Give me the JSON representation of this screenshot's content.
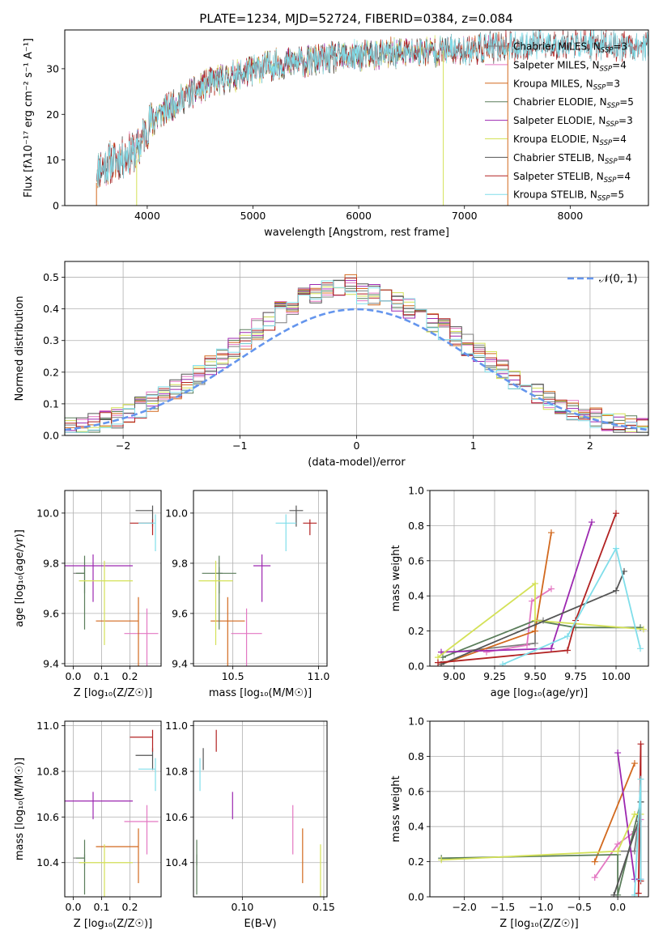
{
  "title": "PLATE=1234, MJD=52724, FIBERID=0384, z=0.084",
  "colors": {
    "chabrier_miles": "#7f7f7f",
    "salpeter_miles": "#e377c2",
    "kroupa_miles": "#d2691e",
    "chabrier_elodie": "#5a7d5a",
    "salpeter_elodie": "#9c27b0",
    "kroupa_elodie": "#d4e157",
    "chabrier_stelib": "#555555",
    "salpeter_stelib": "#b22222",
    "kroupa_stelib": "#80deea",
    "gaussian": "#6495ed"
  },
  "chart_data": [
    {
      "id": "spectrum",
      "type": "line",
      "xlabel": "wavelength [Angstrom, rest frame]",
      "ylabel": "Flux [fλ10⁻¹⁷ erg cm⁻² s⁻¹ A⁻¹]",
      "xlim": [
        3220,
        8740
      ],
      "ylim": [
        0,
        38.5
      ],
      "xticks": [
        4000,
        5000,
        6000,
        7000,
        8000
      ],
      "yticks": [
        0,
        10,
        20,
        30
      ],
      "grid": false,
      "legend_position": "top-right",
      "legend": [
        {
          "label": "Chabrier MILES, N",
          "sub": "SSP",
          "tail": "=3",
          "color": "chabrier_miles"
        },
        {
          "label": "Salpeter MILES, N",
          "sub": "SSP",
          "tail": "=4",
          "color": "salpeter_miles"
        },
        {
          "label": "Kroupa MILES, N",
          "sub": "SSP",
          "tail": "=3",
          "color": "kroupa_miles"
        },
        {
          "label": "Chabrier ELODIE, N",
          "sub": "SSP",
          "tail": "=5",
          "color": "chabrier_elodie"
        },
        {
          "label": "Salpeter ELODIE, N",
          "sub": "SSP",
          "tail": "=3",
          "color": "salpeter_elodie"
        },
        {
          "label": "Kroupa ELODIE, N",
          "sub": "SSP",
          "tail": "=4",
          "color": "kroupa_elodie"
        },
        {
          "label": "Chabrier STELIB, N",
          "sub": "SSP",
          "tail": "=4",
          "color": "chabrier_stelib"
        },
        {
          "label": "Salpeter STELIB, N",
          "sub": "SSP",
          "tail": "=4",
          "color": "salpeter_stelib"
        },
        {
          "label": "Kroupa STELIB, N",
          "sub": "SSP",
          "tail": "=5",
          "color": "kroupa_stelib"
        }
      ],
      "continuum": [
        [
          3520,
          8
        ],
        [
          3700,
          10
        ],
        [
          3900,
          12
        ],
        [
          4050,
          19
        ],
        [
          4300,
          23
        ],
        [
          4600,
          27
        ],
        [
          4900,
          29
        ],
        [
          5200,
          31
        ],
        [
          5500,
          31.5
        ],
        [
          5800,
          32.5
        ],
        [
          6100,
          33
        ],
        [
          6400,
          33.5
        ],
        [
          6700,
          34
        ],
        [
          7000,
          34
        ],
        [
          7400,
          35
        ],
        [
          8000,
          35.5
        ],
        [
          8600,
          35
        ]
      ],
      "series_ranges": [
        {
          "color": "chabrier_miles",
          "xmin": 3520,
          "xmax": 7400
        },
        {
          "color": "salpeter_miles",
          "xmin": 3520,
          "xmax": 7400
        },
        {
          "color": "kroupa_miles",
          "xmin": 3520,
          "xmax": 7410
        },
        {
          "color": "chabrier_elodie",
          "xmin": 3900,
          "xmax": 6800
        },
        {
          "color": "salpeter_elodie",
          "xmin": 3900,
          "xmax": 6800
        },
        {
          "color": "kroupa_elodie",
          "xmin": 3900,
          "xmax": 6800
        },
        {
          "color": "chabrier_stelib",
          "xmin": 3520,
          "xmax": 8750
        },
        {
          "color": "salpeter_stelib",
          "xmin": 3520,
          "xmax": 8750
        },
        {
          "color": "kroupa_stelib",
          "xmin": 3520,
          "xmax": 8750
        }
      ],
      "drop_lines": [
        {
          "x": 3520,
          "y_top": 5,
          "color": "kroupa_miles"
        },
        {
          "x": 3900,
          "y_top": 10,
          "color": "kroupa_elodie"
        },
        {
          "x": 6800,
          "y_top": 34,
          "color": "kroupa_elodie"
        },
        {
          "x": 7410,
          "y_top": 35,
          "color": "kroupa_miles"
        }
      ]
    },
    {
      "id": "residuals",
      "type": "line",
      "xlabel": "(data-model)/error",
      "ylabel": "Normed distribution",
      "xlim": [
        -2.5,
        2.5
      ],
      "ylim": [
        0,
        0.55
      ],
      "xticks": [
        -2,
        -1,
        0,
        1,
        2
      ],
      "xticklabels": [
        "−2",
        "−1",
        "0",
        "1",
        "2"
      ],
      "yticks": [
        0,
        0.1,
        0.2,
        0.3,
        0.4,
        0.5
      ],
      "yticklabels": [
        "0.0",
        "0.1",
        "0.2",
        "0.3",
        "0.4",
        "0.5"
      ],
      "grid": true,
      "legend_position": "top-right",
      "gaussian_label": "𝒩(0, 1)",
      "bin_width": 0.1
    },
    {
      "id": "age_vs_Z",
      "type": "scatter",
      "xlabel": "Z [log₁₀(Z/Z☉)]",
      "ylabel": "age  [log₁₀(age/yr)]",
      "xlim": [
        -0.03,
        0.31
      ],
      "ylim": [
        9.39,
        10.09
      ],
      "xticks": [
        0,
        0.1,
        0.2
      ],
      "xticklabels": [
        "0.0",
        "0.1",
        "0.2"
      ],
      "yticks": [
        9.4,
        9.6,
        9.8,
        10.0
      ],
      "yticklabels": [
        "9.4",
        "9.6",
        "9.8",
        "10.0"
      ],
      "grid": true
    },
    {
      "id": "age_vs_mass",
      "type": "scatter",
      "xlabel": "mass [log₁₀(M/M☉)]",
      "xlim": [
        10.27,
        11.05
      ],
      "ylim": [
        9.39,
        10.09
      ],
      "xticks": [
        10.5,
        11.0
      ],
      "xticklabels": [
        "10.5",
        "11.0"
      ],
      "yticks": [
        9.4,
        9.6,
        9.8,
        10.0
      ],
      "yticklabels": [
        "9.4",
        "9.6",
        "9.8",
        "10.0"
      ],
      "grid": true
    },
    {
      "id": "weight_vs_age",
      "type": "line",
      "xlabel": "age  [log₁₀(age/yr)]",
      "ylabel": "mass weight",
      "xlim": [
        8.85,
        10.2
      ],
      "ylim": [
        0,
        1
      ],
      "xticks": [
        9.0,
        9.25,
        9.5,
        9.75,
        10.0
      ],
      "xticklabels": [
        "9.00",
        "9.25",
        "9.50",
        "9.75",
        "10.00"
      ],
      "yticks": [
        0,
        0.2,
        0.4,
        0.6,
        0.8,
        1.0
      ],
      "yticklabels": [
        "0.0",
        "0.2",
        "0.4",
        "0.6",
        "0.8",
        "1.0"
      ],
      "grid": true,
      "series": [
        {
          "color": "chabrier_miles",
          "points": [
            [
              9.0,
              0.08
            ],
            [
              9.5,
              0.13
            ],
            [
              9.5,
              0.26
            ],
            [
              9.55,
              0.26
            ]
          ]
        },
        {
          "color": "salpeter_miles",
          "points": [
            [
              9.2,
              0.08
            ],
            [
              9.45,
              0.12
            ],
            [
              9.48,
              0.37
            ],
            [
              9.6,
              0.44
            ]
          ]
        },
        {
          "color": "kroupa_miles",
          "points": [
            [
              8.92,
              0.01
            ],
            [
              9.5,
              0.2
            ],
            [
              9.6,
              0.76
            ]
          ]
        },
        {
          "color": "chabrier_elodie",
          "points": [
            [
              8.93,
              0.05
            ],
            [
              9.5,
              0.26
            ],
            [
              9.75,
              0.22
            ],
            [
              10.15,
              0.22
            ]
          ]
        },
        {
          "color": "salpeter_elodie",
          "points": [
            [
              8.92,
              0.08
            ],
            [
              9.6,
              0.1
            ],
            [
              9.85,
              0.82
            ]
          ]
        },
        {
          "color": "kroupa_elodie",
          "points": [
            [
              8.9,
              0.05
            ],
            [
              9.5,
              0.47
            ],
            [
              9.5,
              0.26
            ],
            [
              10.17,
              0.21
            ]
          ]
        },
        {
          "color": "chabrier_stelib",
          "points": [
            [
              8.92,
              0.01
            ],
            [
              10.0,
              0.43
            ],
            [
              10.05,
              0.54
            ]
          ]
        },
        {
          "color": "salpeter_stelib",
          "points": [
            [
              8.9,
              0.02
            ],
            [
              9.7,
              0.09
            ],
            [
              9.75,
              0.26
            ],
            [
              10.0,
              0.87
            ]
          ]
        },
        {
          "color": "kroupa_stelib",
          "points": [
            [
              9.3,
              0.01
            ],
            [
              9.7,
              0.17
            ],
            [
              10.0,
              0.67
            ],
            [
              10.15,
              0.1
            ]
          ]
        }
      ]
    },
    {
      "id": "mass_vs_Z",
      "type": "scatter",
      "xlabel": "Z [log₁₀(Z/Z☉)]",
      "ylabel": "mass [log₁₀(M/M☉)]",
      "xlim": [
        -0.03,
        0.31
      ],
      "ylim": [
        10.25,
        11.02
      ],
      "xticks": [
        0,
        0.1,
        0.2
      ],
      "xticklabels": [
        "0.0",
        "0.1",
        "0.2"
      ],
      "yticks": [
        10.4,
        10.6,
        10.8,
        11.0
      ],
      "yticklabels": [
        "10.4",
        "10.6",
        "10.8",
        "11.0"
      ],
      "grid": true
    },
    {
      "id": "mass_vs_ebv",
      "type": "scatter",
      "xlabel": "E(B-V)",
      "xlim": [
        0.07,
        0.152
      ],
      "ylim": [
        10.25,
        11.02
      ],
      "xticks": [
        0.1,
        0.15
      ],
      "xticklabels": [
        "0.10",
        "0.15"
      ],
      "yticks": [
        10.4,
        10.6,
        10.8,
        11.0
      ],
      "yticklabels": [
        "10.4",
        "10.6",
        "10.8",
        "11.0"
      ],
      "grid": true
    },
    {
      "id": "weight_vs_Z",
      "type": "line",
      "xlabel": "Z [log₁₀(Z/Z☉)]",
      "ylabel": "mass weight",
      "xlim": [
        -2.45,
        0.4
      ],
      "ylim": [
        0,
        1
      ],
      "xticks": [
        -2.0,
        -1.5,
        -1.0,
        -0.5,
        0.0
      ],
      "xticklabels": [
        "−2.0",
        "−1.5",
        "−1.0",
        "−0.5",
        "0.0"
      ],
      "yticks": [
        0,
        0.2,
        0.4,
        0.6,
        0.8,
        1.0
      ],
      "yticklabels": [
        "0.0",
        "0.2",
        "0.4",
        "0.6",
        "0.8",
        "1.0"
      ],
      "grid": true,
      "series": [
        {
          "color": "chabrier_miles",
          "points": [
            [
              0.0,
              0.26
            ],
            [
              0.22,
              0.26
            ],
            [
              0.3,
              0.54
            ]
          ]
        },
        {
          "color": "salpeter_miles",
          "points": [
            [
              -0.3,
              0.11
            ],
            [
              0.0,
              0.3
            ],
            [
              0.22,
              0.37
            ],
            [
              0.3,
              0.44
            ]
          ]
        },
        {
          "color": "kroupa_miles",
          "points": [
            [
              -0.3,
              0.2
            ],
            [
              0.22,
              0.76
            ]
          ]
        },
        {
          "color": "chabrier_elodie",
          "points": [
            [
              -2.3,
              0.22
            ],
            [
              0.0,
              0.24
            ],
            [
              0.0,
              0.01
            ],
            [
              0.3,
              0.54
            ]
          ]
        },
        {
          "color": "salpeter_elodie",
          "points": [
            [
              0.0,
              0.82
            ],
            [
              0.22,
              0.1
            ],
            [
              0.3,
              0.1
            ]
          ]
        },
        {
          "color": "kroupa_elodie",
          "points": [
            [
              -2.3,
              0.21
            ],
            [
              0.0,
              0.26
            ],
            [
              0.22,
              0.47
            ],
            [
              0.3,
              0.47
            ]
          ]
        },
        {
          "color": "chabrier_stelib",
          "points": [
            [
              -0.05,
              0.01
            ],
            [
              0.27,
              0.43
            ],
            [
              0.3,
              0.54
            ]
          ]
        },
        {
          "color": "salpeter_stelib",
          "points": [
            [
              0.27,
              0.02
            ],
            [
              0.3,
              0.87
            ],
            [
              0.3,
              0.09
            ]
          ]
        },
        {
          "color": "kroupa_stelib",
          "points": [
            [
              0.22,
              0.01
            ],
            [
              0.3,
              0.67
            ],
            [
              0.3,
              0.1
            ]
          ]
        }
      ]
    }
  ],
  "bestfit": [
    {
      "color": "chabrier_miles",
      "Z": 0.04,
      "dZlo": 0.04,
      "dZhi": 0.0,
      "age": 9.76,
      "dage": 0.05,
      "mass": 10.42,
      "dmass": 0.02,
      "ebv": 0.072
    },
    {
      "color": "salpeter_miles",
      "Z": 0.26,
      "dZlo": 0.08,
      "dZhi": 0.04,
      "age": 9.52,
      "dage": 0.2,
      "mass": 10.58,
      "dmass": 0.09,
      "ebv": 0.131
    },
    {
      "color": "kroupa_miles",
      "Z": 0.23,
      "dZlo": 0.15,
      "dZhi": 0.0,
      "age": 9.57,
      "dage": 0.19,
      "mass": 10.47,
      "dmass": 0.1,
      "ebv": 0.137
    },
    {
      "color": "chabrier_elodie",
      "Z": 0.04,
      "dZlo": 0.03,
      "dZhi": 0.0,
      "age": 9.76,
      "dage": 0.14,
      "mass": 10.42,
      "dmass": 0.1,
      "ebv": 0.072
    },
    {
      "color": "salpeter_elodie",
      "Z": 0.07,
      "dZlo": 0.15,
      "dZhi": 0.14,
      "age": 9.79,
      "dage": 0.09,
      "mass": 10.67,
      "dmass": 0.05,
      "ebv": 0.094
    },
    {
      "color": "kroupa_elodie",
      "Z": 0.11,
      "dZlo": 0.09,
      "dZhi": 0.1,
      "age": 9.73,
      "dage": 0.16,
      "mass": 10.4,
      "dmass": 0.1,
      "ebv": 0.148
    },
    {
      "color": "chabrier_stelib",
      "Z": 0.28,
      "dZlo": 0.06,
      "dZhi": 0.0,
      "age": 10.01,
      "dage": 0.04,
      "mass": 10.87,
      "dmass": 0.04,
      "ebv": 0.076
    },
    {
      "color": "salpeter_stelib",
      "Z": 0.28,
      "dZlo": 0.08,
      "dZhi": 0.0,
      "age": 9.96,
      "dage": 0.03,
      "mass": 10.95,
      "dmass": 0.04,
      "ebv": 0.084
    },
    {
      "color": "kroupa_stelib",
      "Z": 0.29,
      "dZlo": 0.06,
      "dZhi": 0.0,
      "age": 9.96,
      "dage": 0.07,
      "mass": 10.81,
      "dmass": 0.06,
      "ebv": 0.074
    }
  ]
}
